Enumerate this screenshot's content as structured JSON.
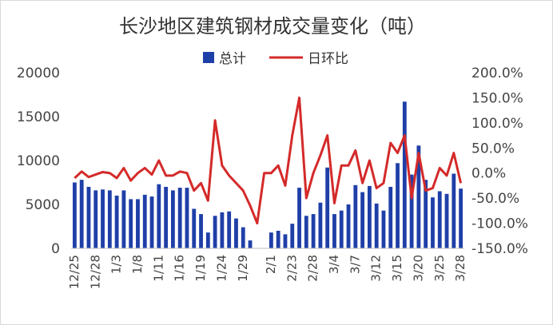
{
  "chart_data": {
    "type": "bar+line",
    "title": "长沙地区建筑钢材成交量变化（吨）",
    "legend_position": "top",
    "grid": false,
    "x_tick_labels": [
      "12/25",
      "12/28",
      "1/3",
      "1/8",
      "1/11",
      "1/16",
      "1/19",
      "1/24",
      "1/29",
      "2/1",
      "2/23",
      "2/28",
      "3/4",
      "3/7",
      "3/12",
      "3/15",
      "3/20",
      "3/25",
      "3/28"
    ],
    "y_left": {
      "ticks": [
        "0",
        "5000",
        "10000",
        "15000",
        "20000"
      ],
      "lim": [
        0,
        20000
      ]
    },
    "y_right": {
      "ticks": [
        "-150.0%",
        "-100.0%",
        "-50.0%",
        "0.0%",
        "50.0%",
        "100.0%",
        "150.0%",
        "200.0%"
      ],
      "lim": [
        -150,
        200
      ]
    },
    "series": [
      {
        "name": "总计",
        "kind": "bar",
        "axis": "left",
        "color": "#1f3fa8",
        "values": [
          7500,
          7800,
          7000,
          6600,
          6700,
          6600,
          6000,
          6600,
          5600,
          5600,
          6100,
          5900,
          7300,
          7000,
          6600,
          6900,
          6900,
          4500,
          3900,
          1800,
          3700,
          4100,
          4200,
          3400,
          2400,
          900,
          0,
          0,
          1800,
          2000,
          1600,
          2800,
          6900,
          3700,
          3900,
          5200,
          9200,
          3900,
          4300,
          5000,
          7200,
          6400,
          7100,
          5100,
          4300,
          7000,
          9700,
          16700,
          8400,
          11700,
          7800,
          5800,
          6500,
          6200,
          8500,
          6800
        ]
      },
      {
        "name": "日环比",
        "kind": "line",
        "axis": "right",
        "color": "#d42a2a",
        "values": [
          -10,
          3,
          -8,
          -3,
          2,
          0,
          -10,
          10,
          -15,
          0,
          10,
          -3,
          25,
          -5,
          -5,
          3,
          0,
          -35,
          -20,
          -55,
          105,
          15,
          -5,
          -20,
          -35,
          -65,
          -100,
          0,
          0,
          15,
          -25,
          75,
          150,
          -50,
          0,
          35,
          75,
          -60,
          15,
          15,
          45,
          -20,
          25,
          -30,
          -20,
          60,
          40,
          75,
          -50,
          40,
          -35,
          -30,
          10,
          -5,
          40,
          -20
        ]
      }
    ]
  }
}
